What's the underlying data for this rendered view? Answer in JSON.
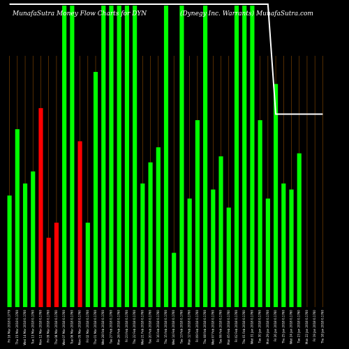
{
  "chart_data": {
    "type": "bar",
    "title_left": "MunafaSutra  Money Flow  Charts for DYN",
    "title_right": "(Dynegy Inc. Warrants) MunafaSutra.com",
    "background": "#000000",
    "colors": {
      "up": "#00ff00",
      "down": "#ff0000",
      "price_line": "#ffffff",
      "grid": "#8a4a00"
    },
    "categories": [
      "Fri 16 Mar 2018 0.1779",
      "Thu 15 Mar 2018 0.1760",
      "Wed 14 Mar 2018 0.1760",
      "Tue 13 Mar 2018 0.1760",
      "Mon 12 Mar 2018 0.1760",
      "Fri 09 Mar 2018 0.1760",
      "Thu 08 Mar 2018 0.1760",
      "Wed 07 Mar 2018 0.1760",
      "Tue 06 Mar 2018 0.1760",
      "Mon 05 Mar 2018 0.1760",
      "Fri 02 Mar 2018 0.1760",
      "Thu 01 Mar 2018 0.1760",
      "Wed 28 Feb 2018 0.1760",
      "Tue 27 Feb 2018 0.1760",
      "Mon 26 Feb 2018 0.1760",
      "Fri 23 Feb 2018 0.1760",
      "Thu 22 Feb 2018 0.1760",
      "Wed 21 Feb 2018 0.1760",
      "Tue 20 Feb 2018 0.1760",
      "Fri 16 Feb 2018 0.1760",
      "Thu 15 Feb 2018 0.1760",
      "Wed 14 Feb 2018 0.1760",
      "Tue 13 Feb 2018 0.1760",
      "Mon 12 Feb 2018 0.1760",
      "Fri 09 Feb 2018 0.1760",
      "Thu 08 Feb 2018 0.1760",
      "Wed 07 Feb 2018 0.1760",
      "Tue 06 Feb 2018 0.1760",
      "Mon 05 Feb 2018 0.1760",
      "Fri 02 Feb 2018 0.1760",
      "Thu 01 Feb 2018 0.1760",
      "Wed 31 Jan 2018 0.1760",
      "Tue 30 Jan 2018 0.1760",
      "Mon 29 Jan 2018 0.1760",
      "Fri 26 Jan 2018 0.1760",
      "Thu 25 Jan 2018 0.1760",
      "Wed 24 Jan 2018 0.1760",
      "Tue 23 Jan 2018 0.1760",
      "Mon 22 Jan 2018 0.1760",
      "Fri 19 Jan 2018 0.1760",
      "Thu 18 Jan 2018 0.1760"
    ],
    "values": [
      37,
      59,
      41,
      45,
      66,
      23,
      28,
      100,
      100,
      55,
      28,
      78,
      100,
      100,
      100,
      100,
      100,
      41,
      48,
      53,
      100,
      18,
      100,
      36,
      62,
      100,
      39,
      50,
      33,
      100,
      100,
      100,
      62,
      36,
      74,
      41,
      39,
      51,
      0,
      0,
      0
    ],
    "directions": [
      "up",
      "up",
      "up",
      "up",
      "down",
      "down",
      "down",
      "up",
      "up",
      "down",
      "up",
      "up",
      "up",
      "up",
      "up",
      "up",
      "up",
      "up",
      "up",
      "up",
      "up",
      "up",
      "up",
      "up",
      "up",
      "up",
      "up",
      "up",
      "up",
      "up",
      "up",
      "up",
      "up",
      "up",
      "up",
      "up",
      "up",
      "up",
      "up",
      "up",
      "up"
    ],
    "ylim": [
      0,
      100
    ],
    "price_line": [
      100,
      100,
      100,
      100,
      100,
      100,
      100,
      100,
      100,
      100,
      100,
      100,
      100,
      100,
      100,
      100,
      100,
      100,
      100,
      100,
      100,
      100,
      100,
      100,
      100,
      100,
      100,
      100,
      100,
      100,
      100,
      100,
      100,
      100,
      64,
      64,
      64,
      64,
      64,
      64,
      64
    ]
  }
}
